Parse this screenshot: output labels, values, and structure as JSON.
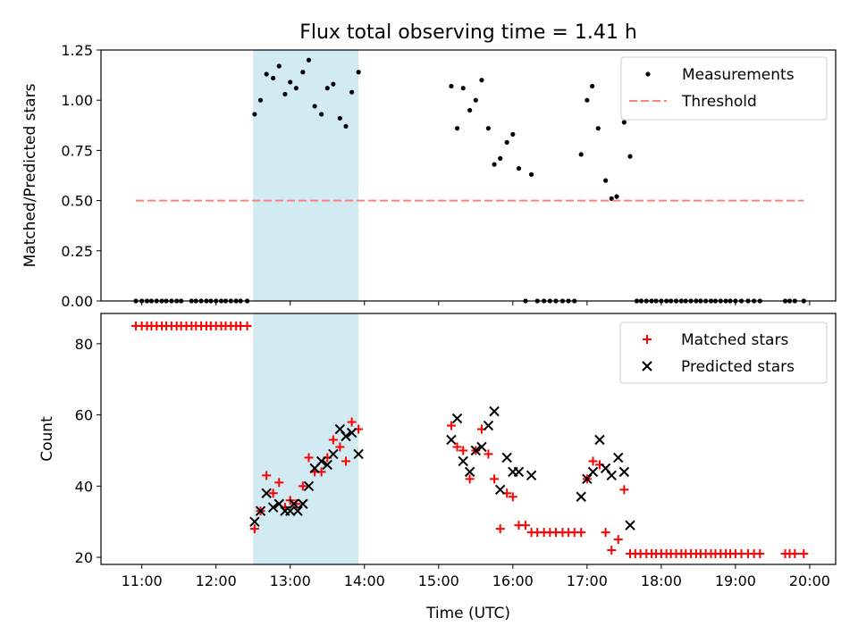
{
  "figure": {
    "title": "Flux total observing time = 1.41 h"
  },
  "chart_data": [
    {
      "type": "scatter",
      "ylabel": "Matched/Predicted stars",
      "xlabel": "",
      "xlim": [
        10.45,
        20.35
      ],
      "ylim": [
        0.0,
        1.25
      ],
      "yticks": [
        "0.00",
        "0.25",
        "0.50",
        "0.75",
        "1.00",
        "1.25"
      ],
      "shaded_interval": [
        12.5,
        13.92
      ],
      "legend_position": "top-right",
      "series": [
        {
          "name": "Measurements",
          "marker": "dot",
          "color": "#000000",
          "points": [
            [
              10.92,
              0
            ],
            [
              11.0,
              0
            ],
            [
              11.07,
              0
            ],
            [
              11.13,
              0
            ],
            [
              11.2,
              0
            ],
            [
              11.27,
              0
            ],
            [
              11.33,
              0
            ],
            [
              11.4,
              0
            ],
            [
              11.47,
              0
            ],
            [
              11.53,
              0
            ],
            [
              11.67,
              0
            ],
            [
              11.73,
              0
            ],
            [
              11.8,
              0
            ],
            [
              11.87,
              0
            ],
            [
              11.93,
              0
            ],
            [
              12.0,
              0
            ],
            [
              12.07,
              0
            ],
            [
              12.13,
              0
            ],
            [
              12.2,
              0
            ],
            [
              12.27,
              0
            ],
            [
              12.33,
              0
            ],
            [
              12.42,
              0
            ],
            [
              12.52,
              0.93
            ],
            [
              12.6,
              1.0
            ],
            [
              12.68,
              1.13
            ],
            [
              12.77,
              1.11
            ],
            [
              12.85,
              1.17
            ],
            [
              12.93,
              1.03
            ],
            [
              13.0,
              1.09
            ],
            [
              13.08,
              1.06
            ],
            [
              13.17,
              1.14
            ],
            [
              13.25,
              1.2
            ],
            [
              13.33,
              0.97
            ],
            [
              13.42,
              0.93
            ],
            [
              13.5,
              1.06
            ],
            [
              13.58,
              1.08
            ],
            [
              13.67,
              0.91
            ],
            [
              13.75,
              0.87
            ],
            [
              13.83,
              1.04
            ],
            [
              13.92,
              1.14
            ],
            [
              15.17,
              1.07
            ],
            [
              15.25,
              0.86
            ],
            [
              15.33,
              1.06
            ],
            [
              15.42,
              0.95
            ],
            [
              15.5,
              1.0
            ],
            [
              15.58,
              1.1
            ],
            [
              15.67,
              0.86
            ],
            [
              15.75,
              0.68
            ],
            [
              15.83,
              0.71
            ],
            [
              15.92,
              0.79
            ],
            [
              16.0,
              0.83
            ],
            [
              16.08,
              0.66
            ],
            [
              16.17,
              0
            ],
            [
              16.25,
              0.63
            ],
            [
              16.33,
              0
            ],
            [
              16.42,
              0
            ],
            [
              16.5,
              0
            ],
            [
              16.58,
              0
            ],
            [
              16.67,
              0
            ],
            [
              16.75,
              0
            ],
            [
              16.83,
              0
            ],
            [
              16.92,
              0.73
            ],
            [
              17.0,
              1.0
            ],
            [
              17.07,
              1.07
            ],
            [
              17.15,
              0.86
            ],
            [
              17.25,
              0.6
            ],
            [
              17.33,
              0.51
            ],
            [
              17.4,
              0.52
            ],
            [
              17.5,
              0.89
            ],
            [
              17.58,
              0.72
            ],
            [
              17.67,
              0
            ],
            [
              17.73,
              0
            ],
            [
              17.8,
              0
            ],
            [
              17.87,
              0
            ],
            [
              17.93,
              0
            ],
            [
              18.0,
              0
            ],
            [
              18.07,
              0
            ],
            [
              18.13,
              0
            ],
            [
              18.2,
              0
            ],
            [
              18.27,
              0
            ],
            [
              18.33,
              0
            ],
            [
              18.4,
              0
            ],
            [
              18.47,
              0
            ],
            [
              18.53,
              0
            ],
            [
              18.6,
              0
            ],
            [
              18.67,
              0
            ],
            [
              18.73,
              0
            ],
            [
              18.8,
              0
            ],
            [
              18.87,
              0
            ],
            [
              18.93,
              0
            ],
            [
              19.0,
              0
            ],
            [
              19.08,
              0
            ],
            [
              19.17,
              0
            ],
            [
              19.25,
              0
            ],
            [
              19.33,
              0
            ],
            [
              19.67,
              0
            ],
            [
              19.73,
              0
            ],
            [
              19.8,
              0
            ],
            [
              19.92,
              0
            ]
          ]
        },
        {
          "name": "Threshold",
          "line": "dashed",
          "color": "#ff7f7f",
          "points": [
            [
              10.92,
              0.5
            ],
            [
              19.92,
              0.5
            ]
          ]
        }
      ]
    },
    {
      "type": "scatter",
      "ylabel": "Count",
      "xlabel": "Time (UTC)",
      "xlim": [
        10.45,
        20.35
      ],
      "ylim": [
        18,
        88.5
      ],
      "yticks": [
        "20",
        "40",
        "60",
        "80"
      ],
      "xticks": [
        "11:00",
        "12:00",
        "13:00",
        "14:00",
        "15:00",
        "16:00",
        "17:00",
        "18:00",
        "19:00",
        "20:00"
      ],
      "xtick_values": [
        11,
        12,
        13,
        14,
        15,
        16,
        17,
        18,
        19,
        20
      ],
      "shaded_interval": [
        12.5,
        13.92
      ],
      "legend_position": "top-right",
      "series": [
        {
          "name": "Matched stars",
          "marker": "plus",
          "color": "#ff0000",
          "points": [
            [
              10.92,
              85
            ],
            [
              11.0,
              85
            ],
            [
              11.07,
              85
            ],
            [
              11.13,
              85
            ],
            [
              11.2,
              85
            ],
            [
              11.27,
              85
            ],
            [
              11.33,
              85
            ],
            [
              11.4,
              85
            ],
            [
              11.47,
              85
            ],
            [
              11.53,
              85
            ],
            [
              11.6,
              85
            ],
            [
              11.67,
              85
            ],
            [
              11.73,
              85
            ],
            [
              11.8,
              85
            ],
            [
              11.87,
              85
            ],
            [
              11.93,
              85
            ],
            [
              12.0,
              85
            ],
            [
              12.07,
              85
            ],
            [
              12.13,
              85
            ],
            [
              12.2,
              85
            ],
            [
              12.27,
              85
            ],
            [
              12.33,
              85
            ],
            [
              12.42,
              85
            ],
            [
              12.52,
              28
            ],
            [
              12.6,
              33
            ],
            [
              12.68,
              43
            ],
            [
              12.77,
              38
            ],
            [
              12.85,
              41
            ],
            [
              12.93,
              34
            ],
            [
              13.0,
              36
            ],
            [
              13.08,
              35
            ],
            [
              13.17,
              40
            ],
            [
              13.25,
              48
            ],
            [
              13.33,
              44
            ],
            [
              13.42,
              44
            ],
            [
              13.5,
              48
            ],
            [
              13.58,
              53
            ],
            [
              13.67,
              51
            ],
            [
              13.75,
              47
            ],
            [
              13.83,
              58
            ],
            [
              13.92,
              56
            ],
            [
              15.17,
              57
            ],
            [
              15.25,
              51
            ],
            [
              15.33,
              50
            ],
            [
              15.42,
              42
            ],
            [
              15.5,
              50
            ],
            [
              15.58,
              56
            ],
            [
              15.67,
              49
            ],
            [
              15.75,
              42
            ],
            [
              15.83,
              28
            ],
            [
              15.92,
              38
            ],
            [
              16.0,
              37
            ],
            [
              16.08,
              29
            ],
            [
              16.17,
              29
            ],
            [
              16.25,
              27
            ],
            [
              16.33,
              27
            ],
            [
              16.42,
              27
            ],
            [
              16.5,
              27
            ],
            [
              16.58,
              27
            ],
            [
              16.67,
              27
            ],
            [
              16.75,
              27
            ],
            [
              16.83,
              27
            ],
            [
              16.92,
              27
            ],
            [
              17.0,
              42
            ],
            [
              17.08,
              47
            ],
            [
              17.17,
              46
            ],
            [
              17.25,
              27
            ],
            [
              17.33,
              22
            ],
            [
              17.42,
              25
            ],
            [
              17.5,
              39
            ],
            [
              17.58,
              21
            ],
            [
              17.65,
              21
            ],
            [
              17.72,
              21
            ],
            [
              17.8,
              21
            ],
            [
              17.87,
              21
            ],
            [
              17.93,
              21
            ],
            [
              18.0,
              21
            ],
            [
              18.07,
              21
            ],
            [
              18.13,
              21
            ],
            [
              18.2,
              21
            ],
            [
              18.27,
              21
            ],
            [
              18.33,
              21
            ],
            [
              18.4,
              21
            ],
            [
              18.47,
              21
            ],
            [
              18.53,
              21
            ],
            [
              18.6,
              21
            ],
            [
              18.67,
              21
            ],
            [
              18.73,
              21
            ],
            [
              18.8,
              21
            ],
            [
              18.87,
              21
            ],
            [
              18.93,
              21
            ],
            [
              19.0,
              21
            ],
            [
              19.08,
              21
            ],
            [
              19.17,
              21
            ],
            [
              19.25,
              21
            ],
            [
              19.33,
              21
            ],
            [
              19.67,
              21
            ],
            [
              19.73,
              21
            ],
            [
              19.8,
              21
            ],
            [
              19.92,
              21
            ]
          ]
        },
        {
          "name": "Predicted stars",
          "marker": "x",
          "color": "#000000",
          "points": [
            [
              12.52,
              30
            ],
            [
              12.6,
              33
            ],
            [
              12.68,
              38
            ],
            [
              12.77,
              34
            ],
            [
              12.85,
              35
            ],
            [
              12.93,
              33
            ],
            [
              13.0,
              33
            ],
            [
              13.05,
              35
            ],
            [
              13.1,
              33
            ],
            [
              13.17,
              35
            ],
            [
              13.25,
              40
            ],
            [
              13.33,
              45
            ],
            [
              13.42,
              47
            ],
            [
              13.5,
              46
            ],
            [
              13.58,
              49
            ],
            [
              13.67,
              56
            ],
            [
              13.75,
              54
            ],
            [
              13.83,
              55
            ],
            [
              13.92,
              49
            ],
            [
              15.17,
              53
            ],
            [
              15.25,
              59
            ],
            [
              15.33,
              47
            ],
            [
              15.42,
              44
            ],
            [
              15.5,
              50
            ],
            [
              15.58,
              51
            ],
            [
              15.67,
              57
            ],
            [
              15.75,
              61
            ],
            [
              15.83,
              39
            ],
            [
              15.92,
              48
            ],
            [
              16.0,
              44
            ],
            [
              16.08,
              44
            ],
            [
              16.25,
              43
            ],
            [
              16.92,
              37
            ],
            [
              17.0,
              42
            ],
            [
              17.08,
              44
            ],
            [
              17.17,
              53
            ],
            [
              17.25,
              45
            ],
            [
              17.33,
              43
            ],
            [
              17.42,
              48
            ],
            [
              17.5,
              44
            ],
            [
              17.58,
              29
            ]
          ]
        }
      ]
    }
  ]
}
